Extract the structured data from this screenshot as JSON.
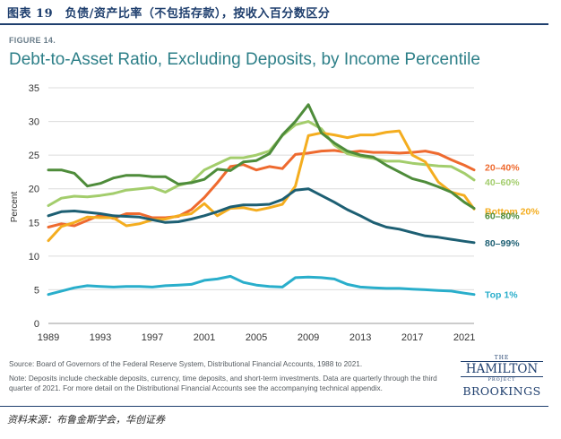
{
  "report": {
    "title": "图表 19　负债/资产比率（不包括存款），按收入百分数区分",
    "source": "资料来源：布鲁金斯学会，华创证券"
  },
  "figure": {
    "label": "FIGURE 14.",
    "title": "Debt-to-Asset Ratio, Excluding Deposits, by Income Percentile",
    "source": "Source: Board of Governors of the Federal Reserve System, Distributional Financial Accounts, 1988 to 2021.",
    "note": "Note: Deposits include checkable deposits, currency, time deposits, and short-term investments. Data are quarterly through the third quarter of 2021. For more detail on the Distributional Financial Accounts see the accompanying technical appendix.",
    "logo": {
      "the": "THE",
      "name": "HAMILTON",
      "project": "PROJECT",
      "org": "BROOKINGS"
    }
  },
  "chart_data": {
    "type": "line",
    "title": "Debt-to-Asset Ratio, Excluding Deposits, by Income Percentile",
    "xlabel": "",
    "ylabel": "Percent",
    "xlim": [
      1989,
      2021.75
    ],
    "ylim": [
      0,
      35
    ],
    "xticks": [
      1989,
      1993,
      1997,
      2001,
      2005,
      2009,
      2013,
      2017,
      2021
    ],
    "yticks": [
      0,
      5,
      10,
      15,
      20,
      25,
      30,
      35
    ],
    "grid": "horizontal",
    "series": [
      {
        "name": "20–40%",
        "color": "#ee6a2f",
        "x": [
          1989,
          1990,
          1991,
          1992,
          1993,
          1994,
          1995,
          1996,
          1997,
          1998,
          1999,
          2000,
          2001,
          2002,
          2003,
          2004,
          2005,
          2006,
          2007,
          2008,
          2009,
          2010,
          2011,
          2012,
          2013,
          2014,
          2015,
          2016,
          2017,
          2018,
          2019,
          2020,
          2021,
          2021.75
        ],
        "y": [
          14.3,
          14.8,
          14.5,
          15.3,
          16.1,
          15.6,
          16.3,
          16.3,
          15.7,
          15.7,
          15.9,
          16.9,
          18.7,
          20.9,
          23.3,
          23.6,
          22.8,
          23.3,
          23.0,
          25.1,
          25.3,
          25.6,
          25.7,
          25.4,
          25.6,
          25.4,
          25.4,
          25.3,
          25.4,
          25.6,
          25.2,
          24.3,
          23.5,
          22.8
        ]
      },
      {
        "name": "40–60%",
        "color": "#a3cd6c",
        "x": [
          1989,
          1990,
          1991,
          1992,
          1993,
          1994,
          1995,
          1996,
          1997,
          1998,
          1999,
          2000,
          2001,
          2002,
          2003,
          2004,
          2005,
          2006,
          2007,
          2008,
          2009,
          2010,
          2011,
          2012,
          2013,
          2014,
          2015,
          2016,
          2017,
          2018,
          2019,
          2020,
          2021,
          2021.75
        ],
        "y": [
          17.5,
          18.6,
          18.9,
          18.8,
          19.0,
          19.3,
          19.8,
          20.0,
          20.2,
          19.5,
          20.5,
          21.0,
          22.8,
          23.7,
          24.6,
          24.6,
          25.0,
          25.6,
          27.9,
          29.5,
          30.0,
          28.9,
          26.5,
          25.2,
          24.8,
          24.5,
          24.1,
          24.1,
          23.8,
          23.6,
          23.4,
          23.3,
          22.3,
          21.3
        ]
      },
      {
        "name": "Bottom 20%",
        "color": "#f4ad1f",
        "x": [
          1989,
          1990,
          1991,
          1992,
          1993,
          1994,
          1995,
          1996,
          1997,
          1998,
          1999,
          2000,
          2001,
          2002,
          2003,
          2004,
          2005,
          2006,
          2007,
          2008,
          2009,
          2010,
          2011,
          2012,
          2013,
          2014,
          2015,
          2016,
          2017,
          2018,
          2019,
          2020,
          2021,
          2021.75
        ],
        "y": [
          12.3,
          14.4,
          15.0,
          15.8,
          15.7,
          15.7,
          14.5,
          14.8,
          15.4,
          15.5,
          16.0,
          16.3,
          17.8,
          16.0,
          17.1,
          17.2,
          16.8,
          17.2,
          17.7,
          20.4,
          27.9,
          28.3,
          28.0,
          27.6,
          28.0,
          28.0,
          28.4,
          28.6,
          25.0,
          24.0,
          21.0,
          19.5,
          19.0,
          17.0
        ]
      },
      {
        "name": "60–80%",
        "color": "#4e8c3a",
        "x": [
          1989,
          1990,
          1991,
          1992,
          1993,
          1994,
          1995,
          1996,
          1997,
          1998,
          1999,
          2000,
          2001,
          2002,
          2003,
          2004,
          2005,
          2006,
          2007,
          2008,
          2009,
          2010,
          2011,
          2012,
          2013,
          2014,
          2015,
          2016,
          2017,
          2018,
          2019,
          2020,
          2021,
          2021.75
        ],
        "y": [
          22.8,
          22.8,
          22.3,
          20.4,
          20.8,
          21.6,
          22.0,
          22.0,
          21.8,
          21.8,
          20.7,
          20.9,
          21.4,
          22.9,
          22.7,
          24.0,
          24.2,
          25.2,
          28.0,
          30.0,
          32.5,
          28.3,
          26.8,
          25.6,
          25.0,
          24.7,
          23.5,
          22.5,
          21.5,
          21.0,
          20.3,
          19.5,
          18.0,
          17.1
        ]
      },
      {
        "name": "80–99%",
        "color": "#1d5f73",
        "x": [
          1989,
          1990,
          1991,
          1992,
          1993,
          1994,
          1995,
          1996,
          1997,
          1998,
          1999,
          2000,
          2001,
          2002,
          2003,
          2004,
          2005,
          2006,
          2007,
          2008,
          2009,
          2010,
          2011,
          2012,
          2013,
          2014,
          2015,
          2016,
          2017,
          2018,
          2019,
          2020,
          2021,
          2021.75
        ],
        "y": [
          16.0,
          16.6,
          16.7,
          16.5,
          16.3,
          16.0,
          15.9,
          15.8,
          15.4,
          15.0,
          15.1,
          15.5,
          16.0,
          16.6,
          17.3,
          17.6,
          17.6,
          17.7,
          18.4,
          19.8,
          20.0,
          19.0,
          18.0,
          16.9,
          16.0,
          15.0,
          14.3,
          14.0,
          13.5,
          13.0,
          12.8,
          12.5,
          12.2,
          12.0
        ]
      },
      {
        "name": "Top 1%",
        "color": "#29aecb",
        "x": [
          1989,
          1990,
          1991,
          1992,
          1993,
          1994,
          1995,
          1996,
          1997,
          1998,
          1999,
          2000,
          2001,
          2002,
          2003,
          2004,
          2005,
          2006,
          2007,
          2008,
          2009,
          2010,
          2011,
          2012,
          2013,
          2014,
          2015,
          2016,
          2017,
          2018,
          2019,
          2020,
          2021,
          2021.75
        ],
        "y": [
          4.3,
          4.8,
          5.3,
          5.6,
          5.5,
          5.4,
          5.5,
          5.5,
          5.4,
          5.6,
          5.7,
          5.8,
          6.4,
          6.6,
          7.0,
          6.1,
          5.7,
          5.5,
          5.4,
          6.8,
          6.9,
          6.8,
          6.6,
          5.8,
          5.4,
          5.3,
          5.2,
          5.2,
          5.1,
          5.0,
          4.9,
          4.8,
          4.5,
          4.3
        ]
      }
    ]
  }
}
